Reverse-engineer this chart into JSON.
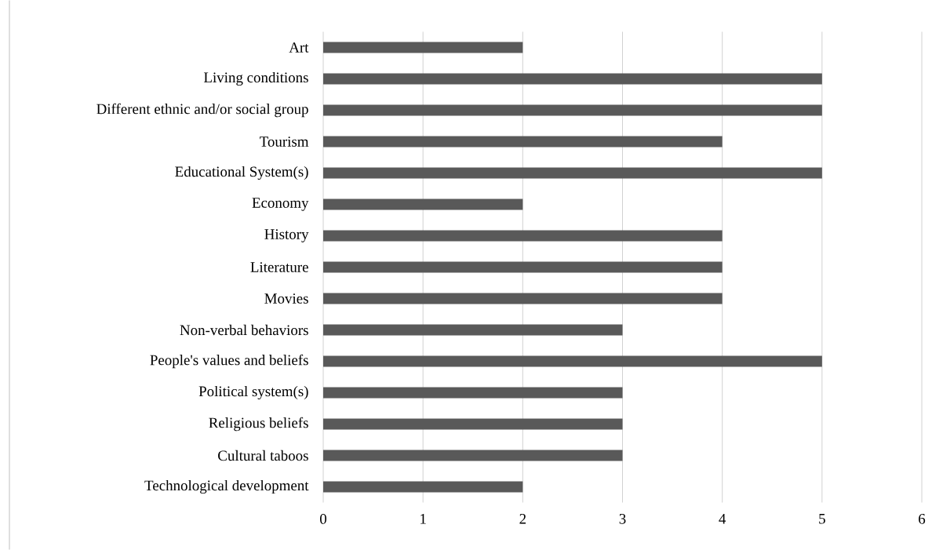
{
  "chart_data": {
    "type": "bar",
    "orientation": "horizontal",
    "categories": [
      "Art",
      "Living conditions",
      "Different ethnic and/or social group",
      "Tourism",
      "Educational System(s)",
      "Economy",
      "History",
      "Literature",
      "Movies",
      "Non-verbal behaviors",
      "People's values and beliefs",
      "Political system(s)",
      "Religious beliefs",
      "Cultural taboos",
      "Technological development"
    ],
    "values": [
      2,
      5,
      5,
      4,
      5,
      2,
      4,
      4,
      4,
      3,
      5,
      3,
      3,
      3,
      2
    ],
    "color": "#595959",
    "xlim": [
      0,
      6
    ],
    "xticks": [
      0,
      1,
      2,
      3,
      4,
      5,
      6
    ],
    "grid": "x"
  }
}
